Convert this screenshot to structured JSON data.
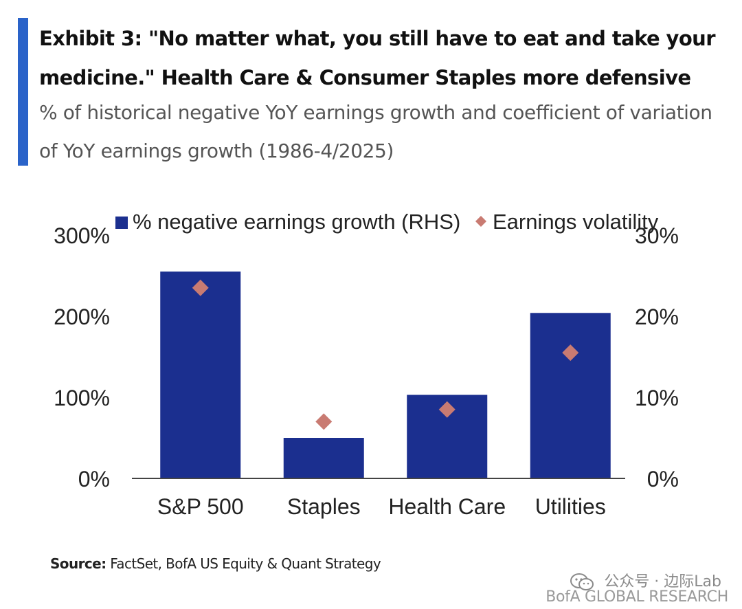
{
  "header": {
    "title": "Exhibit 3: \"No matter what, you still have to eat and take your medicine.\" Health Care & Consumer Staples more defensive",
    "subtitle": "% of historical negative YoY earnings growth and coefficient of variation of YoY earnings growth (1986-4/2025)",
    "accent_color": "#2a63c9"
  },
  "chart_data": {
    "type": "bar",
    "categories": [
      "S&P 500",
      "Staples",
      "Health Care",
      "Utilities"
    ],
    "series": [
      {
        "name": "% negative earnings growth (RHS)",
        "type": "bar",
        "axis": "right",
        "values": [
          25.5,
          5.0,
          10.3,
          20.4
        ],
        "color": "#1b2f8f"
      },
      {
        "name": "Earnings volatility",
        "type": "scatter",
        "marker": "diamond",
        "axis": "left",
        "values": [
          235,
          70,
          85,
          155
        ],
        "color": "#c97b72"
      }
    ],
    "left_axis": {
      "ylim": [
        0,
        300
      ],
      "ticks": [
        "0%",
        "100%",
        "200%",
        "300%"
      ],
      "tick_values": [
        0,
        100,
        200,
        300
      ]
    },
    "right_axis": {
      "ylim": [
        0,
        30
      ],
      "ticks": [
        "0%",
        "10%",
        "20%",
        "30%"
      ],
      "tick_values": [
        0,
        10,
        20,
        30
      ]
    },
    "legend_position": "top",
    "grid": false
  },
  "footer": {
    "source_label": "Source:",
    "source_text": "FactSet, BofA US Equity & Quant Strategy",
    "watermark": "公众号 · 边际Lab",
    "brand": "BofA GLOBAL RESEARCH"
  }
}
